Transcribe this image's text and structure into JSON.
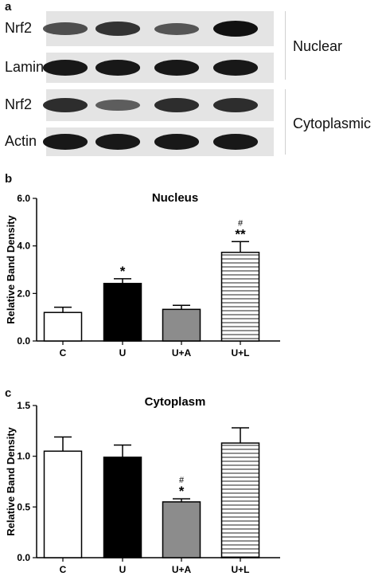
{
  "panel_a": {
    "letter": "a",
    "rows": [
      {
        "label": "Nrf2",
        "intensity": [
          0.55,
          0.75,
          0.5,
          1.0
        ]
      },
      {
        "label": "Lamin",
        "intensity": [
          0.95,
          0.95,
          0.95,
          0.95
        ]
      },
      {
        "label": "Nrf2",
        "intensity": [
          0.8,
          0.45,
          0.8,
          0.8
        ]
      },
      {
        "label": "Actin",
        "intensity": [
          0.95,
          0.95,
          0.95,
          0.95
        ]
      }
    ],
    "groups": {
      "nuclear": "Nuclear",
      "cytoplasmic": "Cytoplasmic"
    }
  },
  "panel_b": {
    "letter": "b"
  },
  "panel_c": {
    "letter": "c"
  },
  "chart_data": [
    {
      "type": "bar",
      "title": "Nucleus",
      "ylabel": "Relative Band Density",
      "xlabel": "",
      "categories": [
        "C",
        "U",
        "U+A",
        "U+L"
      ],
      "values": [
        1.2,
        2.42,
        1.33,
        3.73
      ],
      "errors": [
        0.22,
        0.2,
        0.17,
        0.45
      ],
      "ylim": [
        0,
        6
      ],
      "yticks": [
        "0.0",
        "2.0",
        "4.0",
        "6.0"
      ],
      "ytick_values": [
        0,
        2,
        4,
        6
      ],
      "annotations": [
        {
          "category": "U",
          "star": "*",
          "hash": ""
        },
        {
          "category": "U+L",
          "star": "**",
          "hash": "#"
        }
      ],
      "fills": [
        "white",
        "black",
        "gray",
        "hstripe"
      ],
      "grid": false
    },
    {
      "type": "bar",
      "title": "Cytoplasm",
      "ylabel": "Relative Band Density",
      "xlabel": "",
      "categories": [
        "C",
        "U",
        "U+A",
        "U+L"
      ],
      "values": [
        1.05,
        0.99,
        0.55,
        1.13
      ],
      "errors": [
        0.14,
        0.12,
        0.03,
        0.15
      ],
      "ylim": [
        0,
        1.5
      ],
      "yticks": [
        "0.0",
        "0.5",
        "1.0",
        "1.5"
      ],
      "ytick_values": [
        0,
        0.5,
        1.0,
        1.5
      ],
      "annotations": [
        {
          "category": "U+A",
          "star": "*",
          "hash": "#"
        }
      ],
      "fills": [
        "white",
        "black",
        "gray",
        "hstripe"
      ],
      "grid": false
    }
  ]
}
